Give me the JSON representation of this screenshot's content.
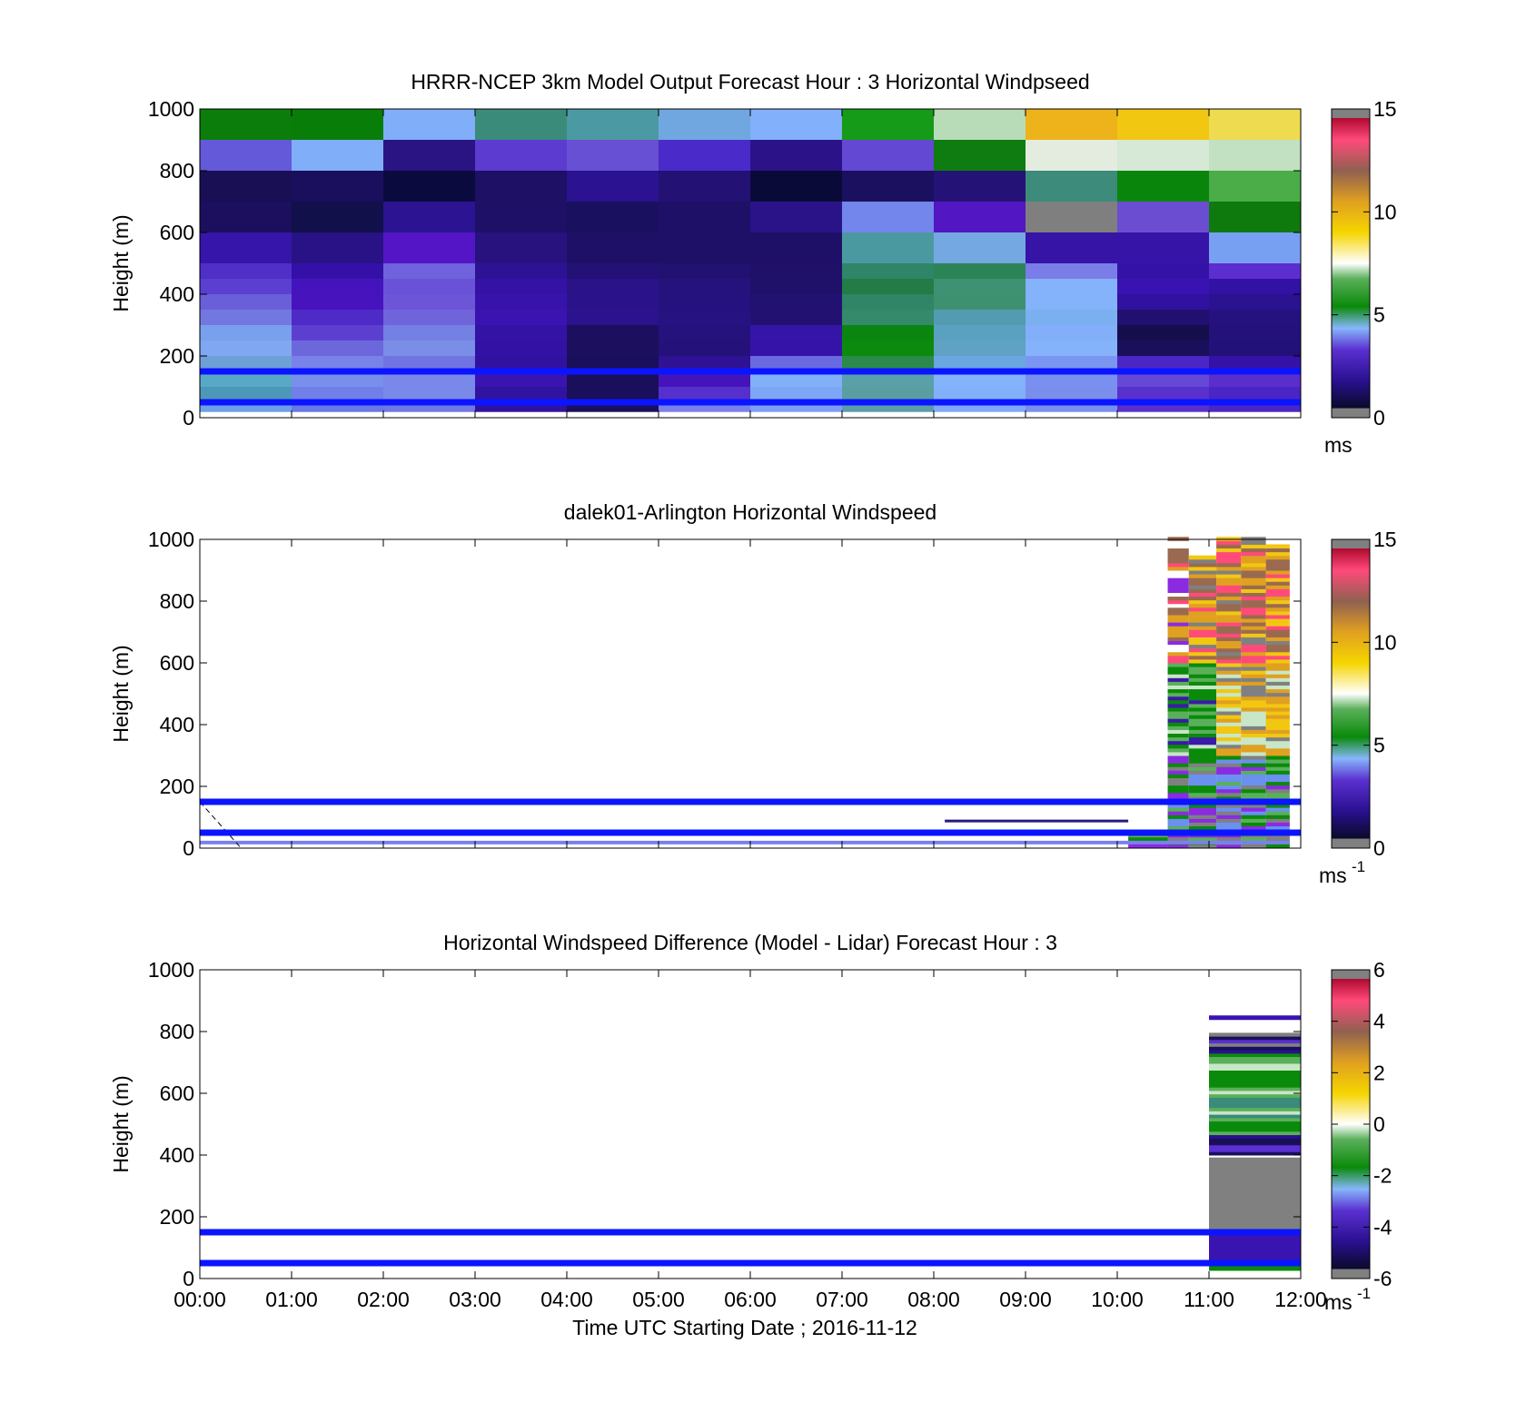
{
  "chart_data": [
    {
      "type": "heatmap",
      "title": "HRRR-NCEP 3km Model Output   Forecast Hour : 3 Horizontal Windpseed",
      "ylabel": "Height (m)",
      "xlabel": "",
      "ylim": [
        0,
        1000
      ],
      "yticks": [
        "0",
        "200",
        "400",
        "600",
        "800",
        "1000"
      ],
      "x_range_hours": [
        0,
        12
      ],
      "colorbar": {
        "ticks": [
          "0",
          "5",
          "10",
          "15"
        ],
        "range": [
          0,
          15
        ],
        "unit_label": "ms",
        "unit_exp": ""
      },
      "reference_lines_m": [
        150,
        50
      ],
      "column_hours": [
        0,
        1,
        2,
        3,
        4,
        5,
        6,
        7,
        8,
        9,
        10,
        11
      ],
      "height_bins_m": [
        [
          900,
          1000
        ],
        [
          800,
          900
        ],
        [
          700,
          800
        ],
        [
          600,
          700
        ],
        [
          500,
          600
        ],
        [
          450,
          500
        ],
        [
          400,
          450
        ],
        [
          350,
          400
        ],
        [
          300,
          350
        ],
        [
          250,
          300
        ],
        [
          200,
          250
        ],
        [
          150,
          200
        ],
        [
          100,
          150
        ],
        [
          50,
          100
        ],
        [
          20,
          50
        ]
      ],
      "grid_colors": [
        [
          "#0b7d0b",
          "#087d08",
          "#80aef9",
          "#3a8b7a",
          "#4b99a2",
          "#70a7e0",
          "#82b0fa",
          "#159b18",
          "#b7dcb7",
          "#eeb21a",
          "#f2c711",
          "#eedb50"
        ],
        [
          "#6459d8",
          "#80aef8",
          "#2a1382",
          "#5b3bd0",
          "#6850d4",
          "#4a2ac8",
          "#2c1289",
          "#6248d2",
          "#0e7c10",
          "#e4ece0",
          "#d6e8d6",
          "#c2e0c2"
        ],
        [
          "#190f55",
          "#1a0f5d",
          "#0b0a3e",
          "#1e1065",
          "#2b1290",
          "#231174",
          "#0a0a38",
          "#1b1060",
          "#241276",
          "#3d8b7a",
          "#0a850c",
          "#4aad48"
        ],
        [
          "#1b0f5e",
          "#12104a",
          "#2b1391",
          "#1d1066",
          "#1a1060",
          "#1d1066",
          "#2a1389",
          "#7286ec",
          "#5216c2",
          "#7f7f7f",
          "#6b4dd2",
          "#0e7a0e"
        ],
        [
          "#3615aa",
          "#281285",
          "#5315c5",
          "#28127e",
          "#1e1066",
          "#1e1066",
          "#1e1066",
          "#4b99a0",
          "#74a8e2",
          "#3514a6",
          "#3614a8",
          "#78a0f2"
        ],
        [
          "#4f2fc7",
          "#3410a8",
          "#6e63dc",
          "#2e1294",
          "#231176",
          "#211170",
          "#201068",
          "#2f8568",
          "#2b8455",
          "#7a7ce8",
          "#3412a8",
          "#5d2ecf"
        ],
        [
          "#5a3fd0",
          "#4513bb",
          "#6a52d8",
          "#3412a6",
          "#2a1389",
          "#25127c",
          "#1f106a",
          "#247b46",
          "#3e9172",
          "#84b2fb",
          "#3b12b2",
          "#3112a4"
        ],
        [
          "#6a5fd8",
          "#4713bd",
          "#6d55d8",
          "#3713ac",
          "#2a138a",
          "#26127e",
          "#211171",
          "#2f8565",
          "#3e9170",
          "#84b2fb",
          "#3111a0",
          "#2a1290"
        ],
        [
          "#7278e0",
          "#4e2ac6",
          "#7064da",
          "#3a13b0",
          "#2c128f",
          "#261280",
          "#231172",
          "#348a6a",
          "#539bb0",
          "#7ab0f0",
          "#221070",
          "#26127f"
        ],
        [
          "#78a0ec",
          "#5d3fd0",
          "#7480e4",
          "#3312a6",
          "#1d0f60",
          "#25127c",
          "#3514a8",
          "#0a8510",
          "#5aa0c0",
          "#82aefa",
          "#150e4c",
          "#24117a"
        ],
        [
          "#80a8f2",
          "#6c68dc",
          "#7a8ee8",
          "#3211a4",
          "#1c0f5e",
          "#24117a",
          "#3513a8",
          "#0c8a0e",
          "#5fa2c4",
          "#84b2fb",
          "#1a0f5a",
          "#23117a"
        ],
        [
          "#6ea0d8",
          "#7882e8",
          "#7174e0",
          "#3111a0",
          "#1a0f5a",
          "#2f1294",
          "#6a6ae0",
          "#2a8a4a",
          "#6aa6e0",
          "#7a96f0",
          "#4a26c4",
          "#3412a8"
        ],
        [
          "#5aa8c8",
          "#7890ec",
          "#7a88ea",
          "#3a14b0",
          "#1a0f5a",
          "#4414ba",
          "#82b0f8",
          "#5aa0a8",
          "#84b2fb",
          "#7a90f0",
          "#6648d6",
          "#5a2ecc"
        ],
        [
          "#4c98b8",
          "#7080e8",
          "#7a88ea",
          "#3013a0",
          "#1a0f5a",
          "#5530cc",
          "#7ea6f6",
          "#5a9ea0",
          "#82b0fa",
          "#7a8eec",
          "#5a30cc",
          "#4a24c4"
        ],
        [
          "#6ca0e8",
          "#6a78e4",
          "#7078e4",
          "#3012a0",
          "#1a0f5a",
          "#7a80ea",
          "#7e9ef4",
          "#5a9ca8",
          "#80a8f6",
          "#7a8eec",
          "#5a30cc",
          "#4a26c4"
        ]
      ]
    },
    {
      "type": "heatmap",
      "title": "dalek01-Arlington  Horizontal Windspeed",
      "ylabel": "Height (m)",
      "xlabel": "",
      "ylim": [
        0,
        1000
      ],
      "yticks": [
        "0",
        "200",
        "400",
        "600",
        "800",
        "1000"
      ],
      "x_range_hours": [
        0,
        12
      ],
      "colorbar": {
        "ticks": [
          "0",
          "5",
          "10",
          "15"
        ],
        "range": [
          0,
          15
        ],
        "unit_label": "ms",
        "unit_exp": "-1"
      },
      "reference_lines_m": [
        150,
        50
      ],
      "observations": "Lidar profiles present only from about 10:10 to 11:55 UTC"
    },
    {
      "type": "heatmap",
      "title": "Horizontal Windspeed Difference (Model - Lidar) Forecast Hour : 3",
      "ylabel": "Height (m)",
      "xlabel": "Time UTC  Starting Date ; 2016-11-12",
      "ylim": [
        0,
        1000
      ],
      "yticks": [
        "0",
        "200",
        "400",
        "600",
        "800",
        "1000"
      ],
      "xticks": [
        "00:00",
        "01:00",
        "02:00",
        "03:00",
        "04:00",
        "05:00",
        "06:00",
        "07:00",
        "08:00",
        "09:00",
        "10:00",
        "11:00",
        "12:00"
      ],
      "x_range_hours": [
        0,
        12
      ],
      "colorbar": {
        "ticks": [
          "-6",
          "-4",
          "-2",
          "0",
          "2",
          "4",
          "6"
        ],
        "range": [
          -6,
          6
        ],
        "unit_label": "ms",
        "unit_exp": "-1"
      },
      "reference_lines_m": [
        150,
        50
      ],
      "observations": "Difference values present only from 11:00 to 12:00 UTC"
    }
  ]
}
